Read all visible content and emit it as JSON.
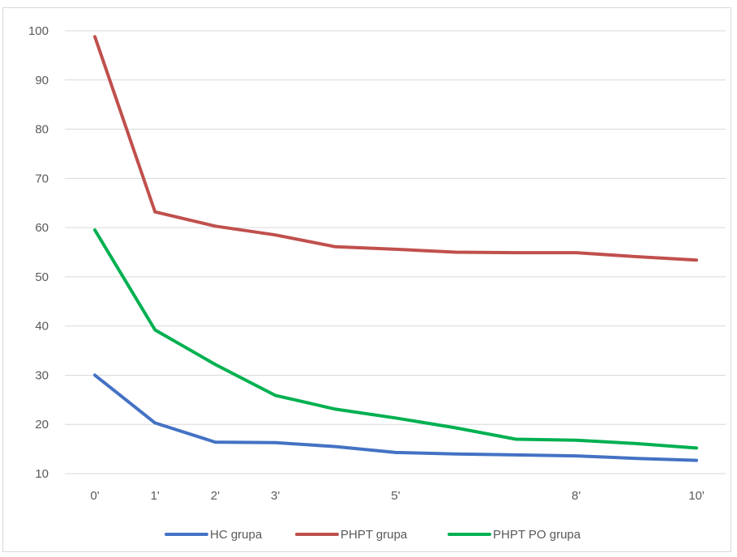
{
  "chart_data": {
    "type": "line",
    "title": "",
    "xlabel": "",
    "ylabel": "",
    "x": [
      0,
      1,
      2,
      3,
      4,
      5,
      6,
      7,
      8,
      9,
      10
    ],
    "x_tick_labels": [
      {
        "x": 0,
        "label": "0'"
      },
      {
        "x": 1,
        "label": "1'"
      },
      {
        "x": 2,
        "label": "2'"
      },
      {
        "x": 3,
        "label": "3'"
      },
      {
        "x": 5,
        "label": "5'"
      },
      {
        "x": 8,
        "label": "8'"
      },
      {
        "x": 10,
        "label": "10'"
      }
    ],
    "ylim": [
      10,
      100
    ],
    "y_ticks": [
      10,
      20,
      30,
      40,
      50,
      60,
      70,
      80,
      90,
      100
    ],
    "grid": "horizontal",
    "legend_position": "bottom",
    "series": [
      {
        "name": "HC grupa",
        "color": "#4472c4",
        "values": [
          30.0,
          20.3,
          16.4,
          16.3,
          15.5,
          14.3,
          14.0,
          13.8,
          13.6,
          13.1,
          12.7
        ]
      },
      {
        "name": "PHPT grupa",
        "color": "#c0504d",
        "values": [
          98.8,
          63.2,
          60.3,
          58.5,
          56.1,
          55.6,
          55.0,
          54.9,
          54.9,
          54.1,
          53.4
        ]
      },
      {
        "name": "PHPT PO grupa",
        "color": "#00b050",
        "values": [
          59.5,
          39.2,
          32.2,
          25.9,
          23.1,
          21.3,
          19.3,
          17.0,
          16.8,
          16.1,
          15.2
        ]
      }
    ]
  }
}
